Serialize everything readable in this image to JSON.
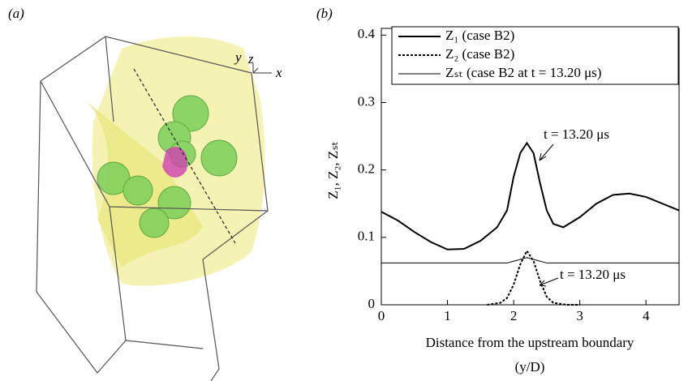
{
  "panel_a": {
    "label": "(a)",
    "axis_labels": [
      "y",
      "z",
      "x"
    ]
  },
  "chart_data": {
    "type": "line",
    "panel_label": "(b)",
    "x_label": [
      "Distance from the upstream boundary",
      "(y/D)"
    ],
    "y_label": "Z₁, Z₂, Zₛₜ",
    "xlim": [
      0,
      4.5
    ],
    "ylim": [
      0,
      0.41
    ],
    "xticks": [
      0,
      1,
      2,
      3,
      4
    ],
    "yticks": [
      {
        "value": 0,
        "label": "0"
      },
      0.1,
      0.2,
      0.3,
      0.4
    ],
    "annotations": [
      "t = 13.20 μs",
      "t = 13.20 μs"
    ],
    "series": [
      {
        "name": "Z₁ (case B2)",
        "color": "#000000",
        "linewidth": 2,
        "dash": "solid",
        "x": [
          0,
          0.25,
          0.5,
          0.75,
          1.0,
          1.25,
          1.5,
          1.75,
          1.9,
          2.0,
          2.1,
          2.2,
          2.3,
          2.4,
          2.5,
          2.6,
          2.75,
          3.0,
          3.25,
          3.5,
          3.75,
          4.0,
          4.25,
          4.5
        ],
        "values": [
          0.138,
          0.125,
          0.108,
          0.093,
          0.082,
          0.083,
          0.095,
          0.115,
          0.14,
          0.19,
          0.225,
          0.24,
          0.225,
          0.18,
          0.14,
          0.12,
          0.115,
          0.13,
          0.15,
          0.163,
          0.165,
          0.16,
          0.15,
          0.14
        ]
      },
      {
        "name": "Z₂ (case B2)",
        "color": "#000000",
        "linewidth": 2,
        "dash": "dotted",
        "x": [
          1.6,
          1.8,
          1.9,
          2.0,
          2.1,
          2.2,
          2.3,
          2.4,
          2.5,
          2.6,
          2.8,
          3.0
        ],
        "values": [
          0,
          0.003,
          0.01,
          0.03,
          0.06,
          0.08,
          0.065,
          0.035,
          0.012,
          0.003,
          0,
          0
        ]
      },
      {
        "name": "Zₛₜ (case B2 at t = 13.20 μs)",
        "color": "#000000",
        "linewidth": 1,
        "dash": "solid",
        "x": [
          0,
          1.9,
          2.05,
          2.2,
          2.35,
          2.5,
          4.5
        ],
        "values": [
          0.062,
          0.062,
          0.066,
          0.07,
          0.066,
          0.062,
          0.062
        ]
      }
    ]
  }
}
